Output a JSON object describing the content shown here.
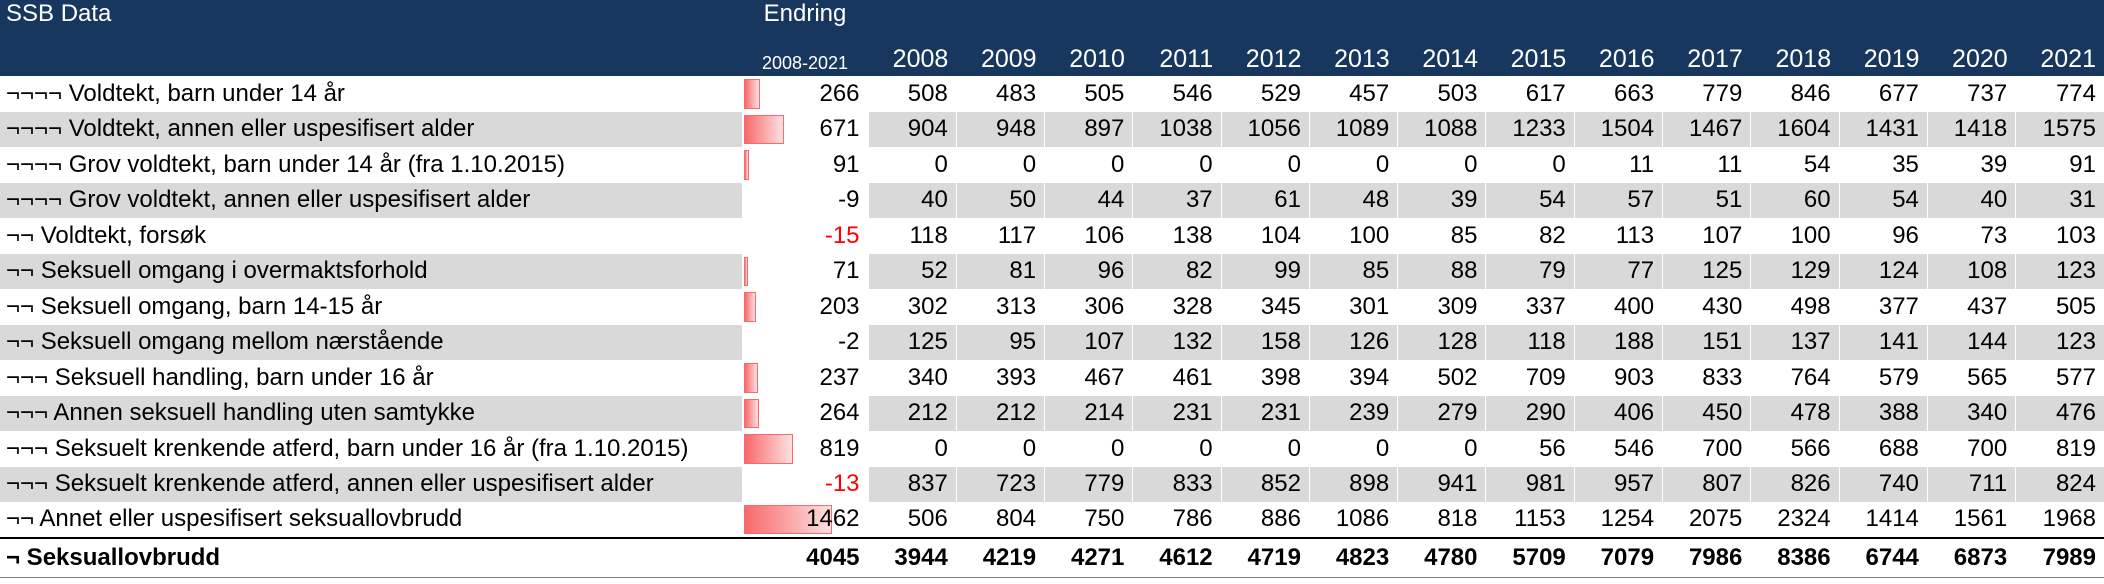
{
  "header": {
    "title": "SSB Data",
    "change_label": "Endring",
    "change_range": "2008-2021",
    "years": [
      "2008",
      "2009",
      "2010",
      "2011",
      "2012",
      "2013",
      "2014",
      "2015",
      "2016",
      "2017",
      "2018",
      "2019",
      "2020",
      "2021"
    ]
  },
  "colors": {
    "header_bg": "#17375e",
    "shade": "#d9d9d9",
    "bar": "#f8696b",
    "negative": "#ff0000"
  },
  "bar_max": 1462,
  "rows": [
    {
      "label": "¬¬¬¬ Voldtekt, barn under 14 år",
      "change": 266,
      "change_text": "266",
      "values": [
        "508",
        "483",
        "505",
        "546",
        "529",
        "457",
        "503",
        "617",
        "663",
        "779",
        "846",
        "677",
        "737",
        "774"
      ]
    },
    {
      "label": "¬¬¬¬ Voldtekt, annen eller uspesifisert alder",
      "change": 671,
      "change_text": "671",
      "values": [
        "904",
        "948",
        "897",
        "1038",
        "1056",
        "1089",
        "1088",
        "1233",
        "1504",
        "1467",
        "1604",
        "1431",
        "1418",
        "1575"
      ]
    },
    {
      "label": "¬¬¬¬ Grov voldtekt, barn under 14 år (fra 1.10.2015)",
      "change": 91,
      "change_text": "91",
      "values": [
        "0",
        "0",
        "0",
        "0",
        "0",
        "0",
        "0",
        "0",
        "11",
        "11",
        "54",
        "35",
        "39",
        "91"
      ]
    },
    {
      "label": "¬¬¬¬ Grov voldtekt, annen eller uspesifisert alder",
      "change": -9,
      "change_text": "-9",
      "values": [
        "40",
        "50",
        "44",
        "37",
        "61",
        "48",
        "39",
        "54",
        "57",
        "51",
        "60",
        "54",
        "40",
        "31"
      ]
    },
    {
      "label": "¬¬ Voldtekt, forsøk",
      "change": -15,
      "change_text": "-15",
      "values": [
        "118",
        "117",
        "106",
        "138",
        "104",
        "100",
        "85",
        "82",
        "113",
        "107",
        "100",
        "96",
        "73",
        "103"
      ]
    },
    {
      "label": "¬¬ Seksuell omgang i overmaktsforhold",
      "change": 71,
      "change_text": "71",
      "values": [
        "52",
        "81",
        "96",
        "82",
        "99",
        "85",
        "88",
        "79",
        "77",
        "125",
        "129",
        "124",
        "108",
        "123"
      ]
    },
    {
      "label": "¬¬ Seksuell omgang, barn 14-15 år",
      "change": 203,
      "change_text": "203",
      "values": [
        "302",
        "313",
        "306",
        "328",
        "345",
        "301",
        "309",
        "337",
        "400",
        "430",
        "498",
        "377",
        "437",
        "505"
      ]
    },
    {
      "label": "¬¬ Seksuell omgang mellom nærstående",
      "change": -2,
      "change_text": "-2",
      "values": [
        "125",
        "95",
        "107",
        "132",
        "158",
        "126",
        "128",
        "118",
        "188",
        "151",
        "137",
        "141",
        "144",
        "123"
      ]
    },
    {
      "label": "¬¬¬ Seksuell handling, barn under 16 år",
      "change": 237,
      "change_text": "237",
      "values": [
        "340",
        "393",
        "467",
        "461",
        "398",
        "394",
        "502",
        "709",
        "903",
        "833",
        "764",
        "579",
        "565",
        "577"
      ]
    },
    {
      "label": "¬¬¬ Annen seksuell handling uten samtykke",
      "change": 264,
      "change_text": "264",
      "values": [
        "212",
        "212",
        "214",
        "231",
        "231",
        "239",
        "279",
        "290",
        "406",
        "450",
        "478",
        "388",
        "340",
        "476"
      ]
    },
    {
      "label": "¬¬¬ Seksuelt krenkende atferd, barn under 16 år (fra 1.10.2015)",
      "change": 819,
      "change_text": "819",
      "values": [
        "0",
        "0",
        "0",
        "0",
        "0",
        "0",
        "0",
        "56",
        "546",
        "700",
        "566",
        "688",
        "700",
        "819"
      ]
    },
    {
      "label": "¬¬¬ Seksuelt krenkende atferd, annen eller uspesifisert alder",
      "change": -13,
      "change_text": "-13",
      "values": [
        "837",
        "723",
        "779",
        "833",
        "852",
        "898",
        "941",
        "981",
        "957",
        "807",
        "826",
        "740",
        "711",
        "824"
      ]
    },
    {
      "label": "¬¬ Annet eller uspesifisert seksuallovbrudd",
      "change": 1462,
      "change_text": "1462",
      "values": [
        "506",
        "804",
        "750",
        "786",
        "886",
        "1086",
        "818",
        "1153",
        "1254",
        "2075",
        "2324",
        "1414",
        "1561",
        "1968"
      ]
    }
  ],
  "total": {
    "label": "¬ Seksuallovbrudd",
    "change_text": "4045",
    "values": [
      "3944",
      "4219",
      "4271",
      "4612",
      "4719",
      "4823",
      "4780",
      "5709",
      "7079",
      "7986",
      "8386",
      "6744",
      "6873",
      "7989"
    ]
  }
}
